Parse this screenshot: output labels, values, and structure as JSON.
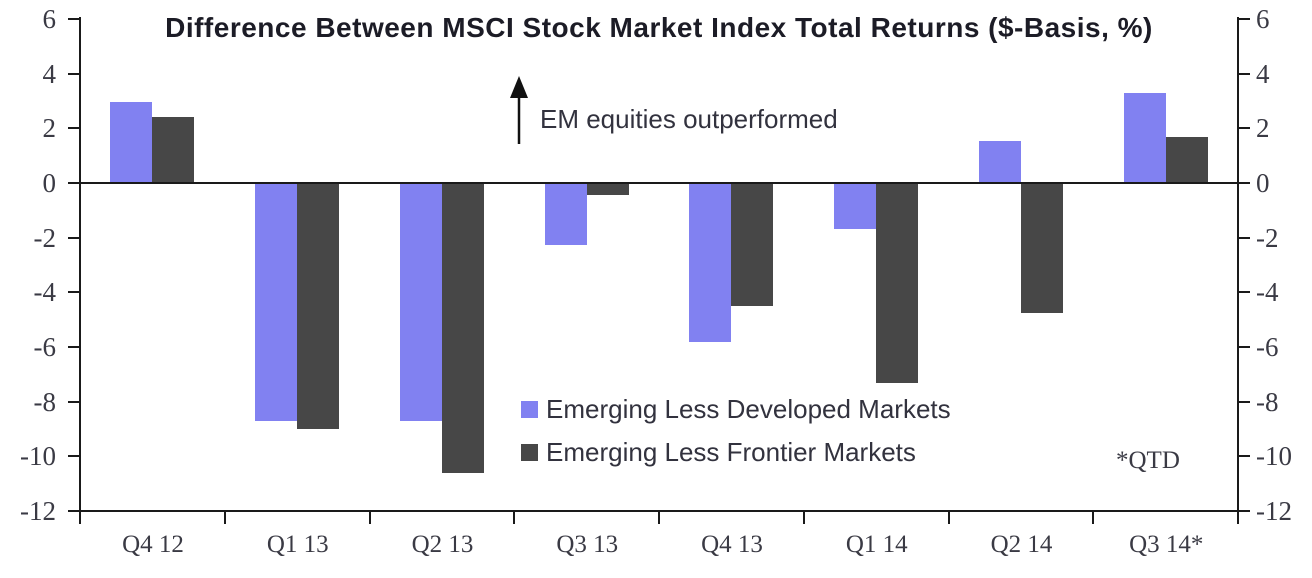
{
  "chart_data": {
    "type": "bar",
    "title": "Difference Between MSCI Stock Market Index Total Returns ($-Basis, %)",
    "categories": [
      "Q4 12",
      "Q1 13",
      "Q2 13",
      "Q3 13",
      "Q4 13",
      "Q1 14",
      "Q2 14",
      "Q3 14*"
    ],
    "series": [
      {
        "name": "Emerging Less Developed Markets",
        "color": "#8181f1",
        "values": [
          2.95,
          -8.7,
          -8.7,
          -2.25,
          -5.8,
          -1.7,
          1.55,
          3.3
        ]
      },
      {
        "name": "Emerging Less Frontier Markets",
        "color": "#474747",
        "values": [
          2.4,
          -9.0,
          -10.6,
          -0.45,
          -4.5,
          -7.3,
          -4.75,
          1.7
        ]
      }
    ],
    "ylabel": "",
    "xlabel": "",
    "ylim": [
      -12,
      6
    ],
    "yticks": [
      6,
      4,
      2,
      0,
      -2,
      -4,
      -6,
      -8,
      -10,
      -12
    ],
    "y_axis_sides": "both (mirrored left and right)",
    "grid": false,
    "zero_line": true,
    "legend_position": "inside lower-center",
    "annotation": "EM equities outperformed",
    "annotation_icon": "up-arrow",
    "footnote": "*QTD",
    "axis_color": "#1a1a1a",
    "background_color": "#ffffff"
  }
}
